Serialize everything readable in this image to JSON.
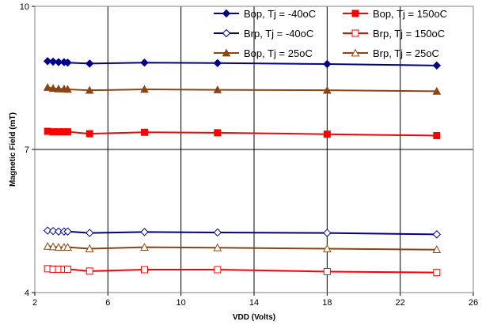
{
  "chart_data": {
    "type": "line",
    "title": "",
    "xlabel": "VDD (Volts)",
    "ylabel": "Magnetic Field (mT)",
    "xlim": [
      2,
      26
    ],
    "ylim": [
      4,
      10
    ],
    "x_ticks": [
      2,
      6,
      10,
      14,
      18,
      22,
      26
    ],
    "y_ticks": [
      4,
      7,
      10
    ],
    "x_tick_labels": [
      "2",
      "6",
      "10",
      "14",
      "18",
      "22",
      "26"
    ],
    "y_tick_labels": [
      "4",
      "7",
      "10"
    ],
    "grid": true,
    "legend_position": "top-right",
    "x": [
      2.7,
      3.0,
      3.3,
      3.6,
      3.8,
      5,
      8,
      12,
      18,
      24
    ],
    "series": [
      {
        "name": "Bop, Tj = -40oC",
        "color": "#00008B",
        "marker": "diamond-filled",
        "values": [
          8.85,
          8.84,
          8.83,
          8.83,
          8.82,
          8.8,
          8.82,
          8.81,
          8.79,
          8.76
        ]
      },
      {
        "name": "Bop, Tj = 150oC",
        "color": "#FF0000",
        "marker": "square-filled",
        "values": [
          7.38,
          7.37,
          7.37,
          7.37,
          7.37,
          7.33,
          7.36,
          7.35,
          7.32,
          7.29
        ]
      },
      {
        "name": "Brp, Tj = -40oC",
        "color": "#00008B",
        "marker": "diamond-open",
        "values": [
          5.3,
          5.29,
          5.28,
          5.28,
          5.28,
          5.25,
          5.27,
          5.26,
          5.25,
          5.22
        ]
      },
      {
        "name": "Brp, Tj = 150oC",
        "color": "#FF0000",
        "marker": "square-open",
        "values": [
          4.5,
          4.49,
          4.49,
          4.49,
          4.49,
          4.45,
          4.48,
          4.48,
          4.44,
          4.42
        ]
      },
      {
        "name": "Bop, Tj = 25oC",
        "color": "#8B4513",
        "marker": "triangle-filled",
        "values": [
          8.3,
          8.28,
          8.27,
          8.27,
          8.26,
          8.24,
          8.26,
          8.25,
          8.24,
          8.22
        ]
      },
      {
        "name": "Brp, Tj = 25oC",
        "color": "#8B4513",
        "marker": "triangle-open",
        "values": [
          4.97,
          4.96,
          4.95,
          4.95,
          4.95,
          4.92,
          4.95,
          4.94,
          4.92,
          4.9
        ]
      }
    ]
  }
}
